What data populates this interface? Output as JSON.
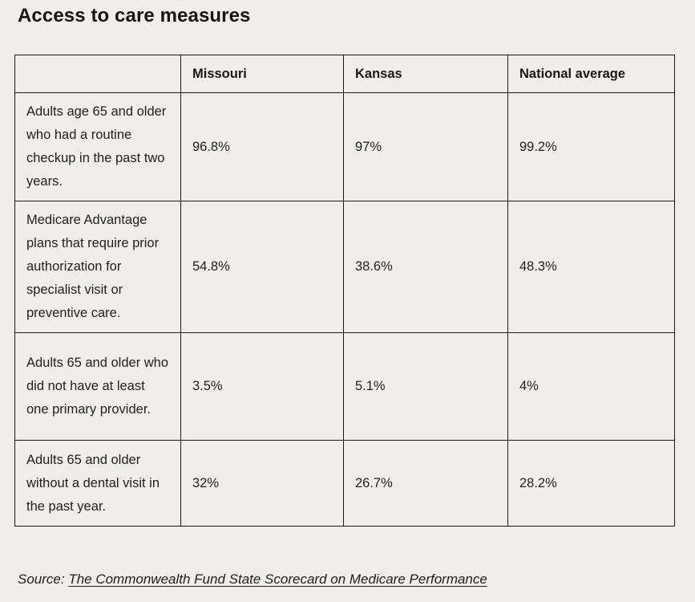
{
  "page": {
    "title": "Access to care measures",
    "background_color": "#efeeec",
    "border_color": "#1c1712",
    "text_color": "#21201e"
  },
  "source": {
    "prefix": "Source: ",
    "link_text": "The Commonwealth Fund State Scorecard on Medicare Performance"
  },
  "chart_data": {
    "type": "table",
    "title": "Access to care measures",
    "columns": [
      "Missouri",
      "Kansas",
      "National average"
    ],
    "rows": [
      {
        "measure": "Adults age 65 and older who had a routine checkup in the past two years.",
        "values": [
          "96.8%",
          "97%",
          "99.2%"
        ]
      },
      {
        "measure": "Medicare Advantage plans that require prior authorization for specialist visit or preventive care.",
        "values": [
          "54.8%",
          "38.6%",
          "48.3%"
        ]
      },
      {
        "measure": "Adults 65 and older who did not have at least one primary provider.",
        "values": [
          "3.5%",
          "5.1%",
          "4%"
        ]
      },
      {
        "measure": "Adults 65 and older without a dental visit in the past year.",
        "values": [
          "32%",
          "26.7%",
          "28.2%"
        ]
      }
    ],
    "source": "Source: The Commonwealth Fund State Scorecard on Medicare Performance",
    "layout": {
      "grid": true,
      "header_row": true,
      "first_column_is_row_labels": true
    }
  }
}
